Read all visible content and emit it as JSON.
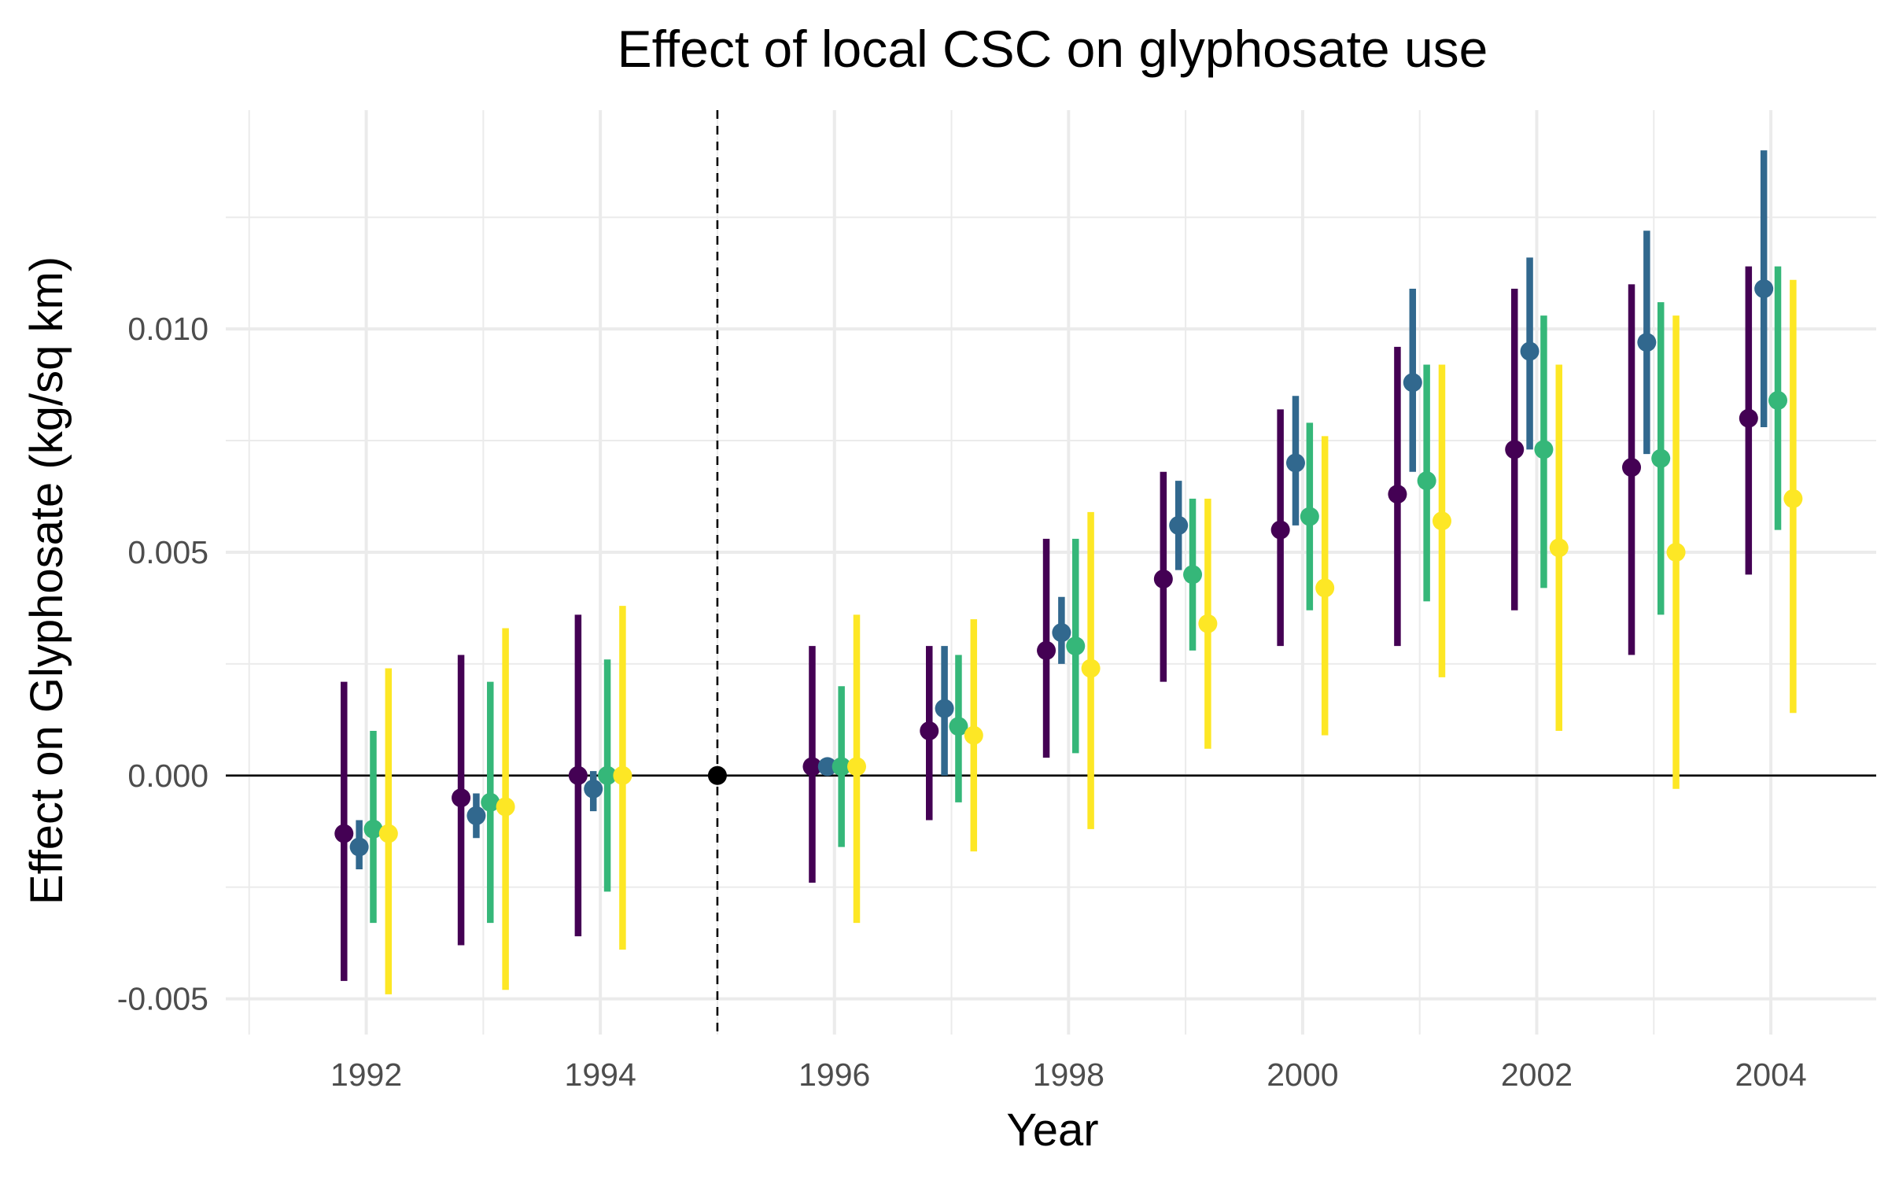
{
  "chart_data": {
    "type": "scatter",
    "subtype": "point-range",
    "title": "Effect of local CSC on glyphosate use",
    "xlabel": "Year",
    "ylabel": "Effect on Glyphosate (kg/sq km)",
    "xlim": [
      1990.8,
      2004.9
    ],
    "ylim": [
      -0.0058,
      0.0149
    ],
    "x_ticks": [
      1992,
      1994,
      1996,
      1998,
      2000,
      2002,
      2004
    ],
    "x_tick_labels": [
      "1992",
      "1994",
      "1996",
      "1998",
      "2000",
      "2002",
      "2004"
    ],
    "y_ticks": [
      -0.005,
      0.0,
      0.005,
      0.01
    ],
    "y_tick_labels": [
      "-0.005",
      "0.000",
      "0.005",
      "0.010"
    ],
    "grid": true,
    "legend": "none",
    "reference_line": {
      "y": 0.0,
      "color": "#000000"
    },
    "event_line": {
      "x": 1995,
      "style": "dashed",
      "color": "#000000"
    },
    "series_colors": [
      "#440154",
      "#31688e",
      "#35b779",
      "#fde725"
    ],
    "dodge_offsets": [
      -0.19,
      -0.06,
      0.06,
      0.19
    ],
    "reference_point": {
      "x": 1995,
      "y": 0.0,
      "color": "#000000"
    },
    "series": [
      {
        "points": [
          {
            "x": 1992,
            "y": -0.0013,
            "lo": -0.0046,
            "hi": 0.0021
          },
          {
            "x": 1993,
            "y": -0.0005,
            "lo": -0.0038,
            "hi": 0.0027
          },
          {
            "x": 1994,
            "y": 0.0,
            "lo": -0.0036,
            "hi": 0.0036
          },
          {
            "x": 1996,
            "y": 0.0002,
            "lo": -0.0024,
            "hi": 0.0029
          },
          {
            "x": 1997,
            "y": 0.001,
            "lo": -0.001,
            "hi": 0.0029
          },
          {
            "x": 1998,
            "y": 0.0028,
            "lo": 0.0004,
            "hi": 0.0053
          },
          {
            "x": 1999,
            "y": 0.0044,
            "lo": 0.0021,
            "hi": 0.0068
          },
          {
            "x": 2000,
            "y": 0.0055,
            "lo": 0.0029,
            "hi": 0.0082
          },
          {
            "x": 2001,
            "y": 0.0063,
            "lo": 0.0029,
            "hi": 0.0096
          },
          {
            "x": 2002,
            "y": 0.0073,
            "lo": 0.0037,
            "hi": 0.0109
          },
          {
            "x": 2003,
            "y": 0.0069,
            "lo": 0.0027,
            "hi": 0.011
          },
          {
            "x": 2004,
            "y": 0.008,
            "lo": 0.0045,
            "hi": 0.0114
          }
        ]
      },
      {
        "points": [
          {
            "x": 1992,
            "y": -0.0016,
            "lo": -0.0021,
            "hi": -0.001
          },
          {
            "x": 1993,
            "y": -0.0009,
            "lo": -0.0014,
            "hi": -0.0004
          },
          {
            "x": 1994,
            "y": -0.0003,
            "lo": -0.0008,
            "hi": 0.0001
          },
          {
            "x": 1996,
            "y": 0.0002,
            "lo": 0.0001,
            "hi": 0.0002
          },
          {
            "x": 1997,
            "y": 0.0015,
            "lo": 0.0,
            "hi": 0.0029
          },
          {
            "x": 1998,
            "y": 0.0032,
            "lo": 0.0025,
            "hi": 0.004
          },
          {
            "x": 1999,
            "y": 0.0056,
            "lo": 0.0046,
            "hi": 0.0066
          },
          {
            "x": 2000,
            "y": 0.007,
            "lo": 0.0056,
            "hi": 0.0085
          },
          {
            "x": 2001,
            "y": 0.0088,
            "lo": 0.0068,
            "hi": 0.0109
          },
          {
            "x": 2002,
            "y": 0.0095,
            "lo": 0.0073,
            "hi": 0.0116
          },
          {
            "x": 2003,
            "y": 0.0097,
            "lo": 0.0072,
            "hi": 0.0122
          },
          {
            "x": 2004,
            "y": 0.0109,
            "lo": 0.0078,
            "hi": 0.014
          }
        ]
      },
      {
        "points": [
          {
            "x": 1992,
            "y": -0.0012,
            "lo": -0.0033,
            "hi": 0.001
          },
          {
            "x": 1993,
            "y": -0.0006,
            "lo": -0.0033,
            "hi": 0.0021
          },
          {
            "x": 1994,
            "y": 0.0,
            "lo": -0.0026,
            "hi": 0.0026
          },
          {
            "x": 1996,
            "y": 0.0002,
            "lo": -0.0016,
            "hi": 0.002
          },
          {
            "x": 1997,
            "y": 0.0011,
            "lo": -0.0006,
            "hi": 0.0027
          },
          {
            "x": 1998,
            "y": 0.0029,
            "lo": 0.0005,
            "hi": 0.0053
          },
          {
            "x": 1999,
            "y": 0.0045,
            "lo": 0.0028,
            "hi": 0.0062
          },
          {
            "x": 2000,
            "y": 0.0058,
            "lo": 0.0037,
            "hi": 0.0079
          },
          {
            "x": 2001,
            "y": 0.0066,
            "lo": 0.0039,
            "hi": 0.0092
          },
          {
            "x": 2002,
            "y": 0.0073,
            "lo": 0.0042,
            "hi": 0.0103
          },
          {
            "x": 2003,
            "y": 0.0071,
            "lo": 0.0036,
            "hi": 0.0106
          },
          {
            "x": 2004,
            "y": 0.0084,
            "lo": 0.0055,
            "hi": 0.0114
          }
        ]
      },
      {
        "points": [
          {
            "x": 1992,
            "y": -0.0013,
            "lo": -0.0049,
            "hi": 0.0024
          },
          {
            "x": 1993,
            "y": -0.0007,
            "lo": -0.0048,
            "hi": 0.0033
          },
          {
            "x": 1994,
            "y": 0.0,
            "lo": -0.0039,
            "hi": 0.0038
          },
          {
            "x": 1996,
            "y": 0.0002,
            "lo": -0.0033,
            "hi": 0.0036
          },
          {
            "x": 1997,
            "y": 0.0009,
            "lo": -0.0017,
            "hi": 0.0035
          },
          {
            "x": 1998,
            "y": 0.0024,
            "lo": -0.0012,
            "hi": 0.0059
          },
          {
            "x": 1999,
            "y": 0.0034,
            "lo": 0.0006,
            "hi": 0.0062
          },
          {
            "x": 2000,
            "y": 0.0042,
            "lo": 0.0009,
            "hi": 0.0076
          },
          {
            "x": 2001,
            "y": 0.0057,
            "lo": 0.0022,
            "hi": 0.0092
          },
          {
            "x": 2002,
            "y": 0.0051,
            "lo": 0.001,
            "hi": 0.0092
          },
          {
            "x": 2003,
            "y": 0.005,
            "lo": -0.0003,
            "hi": 0.0103
          },
          {
            "x": 2004,
            "y": 0.0062,
            "lo": 0.0014,
            "hi": 0.0111
          }
        ]
      }
    ]
  }
}
